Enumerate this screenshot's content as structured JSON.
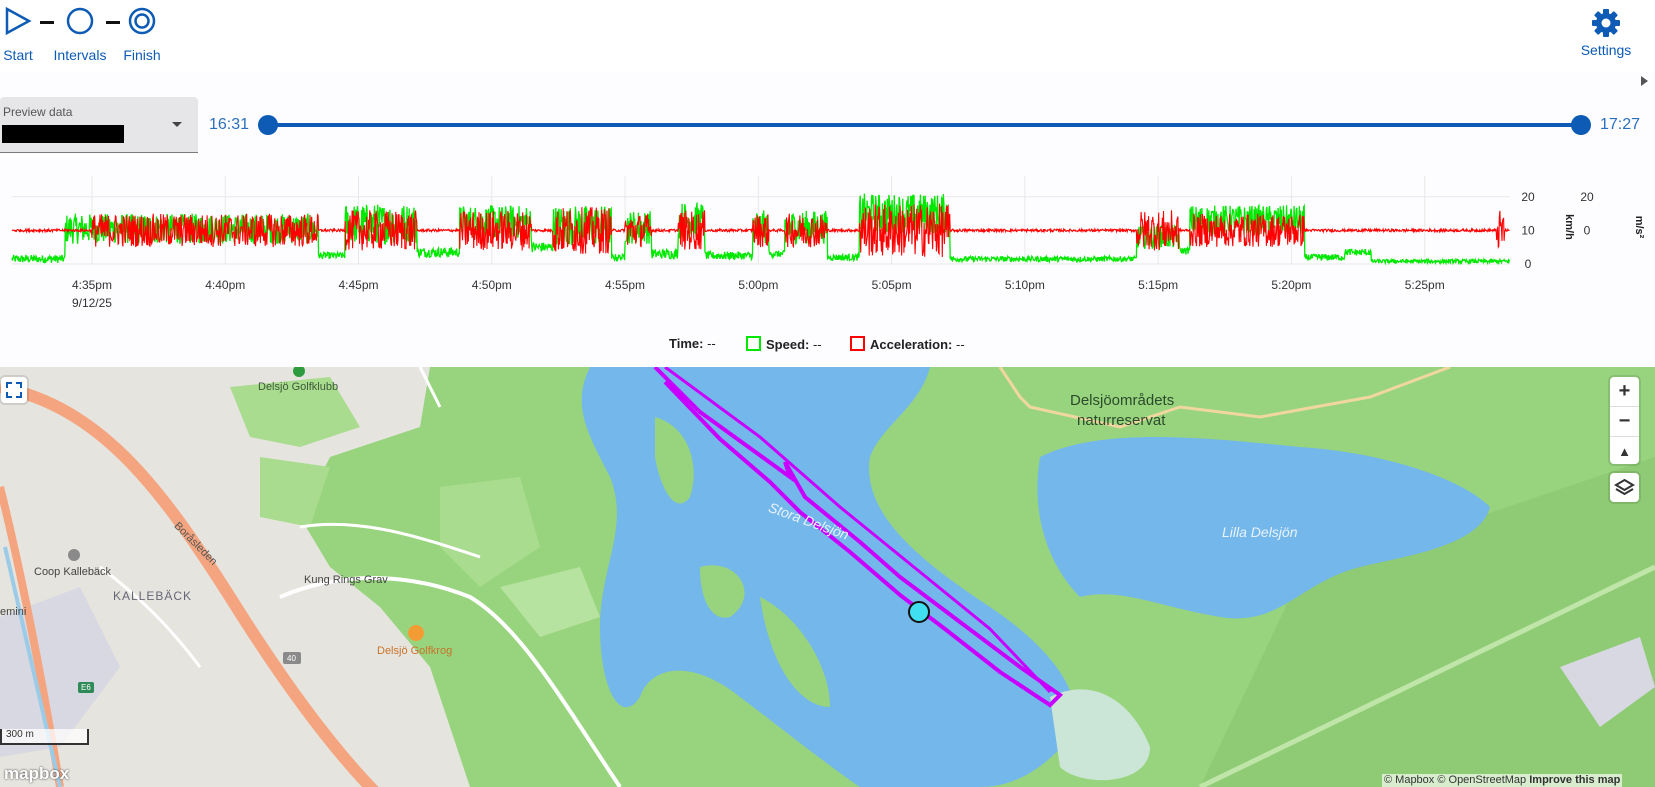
{
  "steps": [
    {
      "label": "Start",
      "icon": "play-outline-icon"
    },
    {
      "label": "Intervals",
      "icon": "circle-outline-icon"
    },
    {
      "label": "Finish",
      "icon": "target-icon"
    }
  ],
  "settings_label": "Settings",
  "preview": {
    "label": "Preview data",
    "value": ""
  },
  "range": {
    "start_label": "16:31",
    "end_label": "17:27",
    "start_fraction": 0.0,
    "end_fraction": 1.0
  },
  "legend": {
    "time_label": "Time:",
    "time_value": "--",
    "speed_label": "Speed:",
    "speed_value": "--",
    "accel_label": "Acceleration:",
    "accel_value": "--"
  },
  "colors": {
    "accent": "#0d5bb5",
    "speed": "#00e800",
    "acceleration": "#ff0000",
    "water": "#74b7ea",
    "land": "#98d47e",
    "track": "#c800ff",
    "marker": "#40e0f0"
  },
  "chart_data": {
    "type": "line",
    "x_ticks": [
      "4:35pm",
      "4:40pm",
      "4:45pm",
      "4:50pm",
      "4:55pm",
      "5:00pm",
      "5:05pm",
      "5:10pm",
      "5:15pm",
      "5:20pm",
      "5:25pm"
    ],
    "x_date_label": "9/12/25",
    "x_range_minutes": [
      32.0,
      88.2
    ],
    "y_left": {
      "label": "km/h",
      "ticks": [
        0,
        10,
        20
      ],
      "ylim": [
        0,
        25
      ]
    },
    "y_right": {
      "label": "m/s²",
      "ticks": [
        0,
        20
      ],
      "ylim": [
        -20,
        30
      ]
    },
    "series": [
      {
        "name": "Speed",
        "color": "#00e800",
        "segments": [
          {
            "start": 32.0,
            "end": 34.0,
            "level": 1.5,
            "noise": 1.2
          },
          {
            "start": 34.0,
            "end": 43.5,
            "level": 10.5,
            "noise": 4.5
          },
          {
            "start": 43.5,
            "end": 44.5,
            "level": 2.5,
            "noise": 1.0
          },
          {
            "start": 44.5,
            "end": 47.2,
            "level": 12.0,
            "noise": 6.0
          },
          {
            "start": 47.2,
            "end": 48.8,
            "level": 3.5,
            "noise": 1.5
          },
          {
            "start": 48.8,
            "end": 51.5,
            "level": 12.5,
            "noise": 5.0
          },
          {
            "start": 51.5,
            "end": 52.3,
            "level": 5.0,
            "noise": 1.5
          },
          {
            "start": 52.3,
            "end": 54.5,
            "level": 11.5,
            "noise": 6.0
          },
          {
            "start": 54.5,
            "end": 55.0,
            "level": 2.0,
            "noise": 1.0
          },
          {
            "start": 55.0,
            "end": 56.0,
            "level": 11.0,
            "noise": 5.0
          },
          {
            "start": 56.0,
            "end": 57.0,
            "level": 3.0,
            "noise": 1.5
          },
          {
            "start": 57.0,
            "end": 58.0,
            "level": 13.0,
            "noise": 5.5
          },
          {
            "start": 58.0,
            "end": 59.8,
            "level": 2.5,
            "noise": 1.2
          },
          {
            "start": 59.8,
            "end": 60.4,
            "level": 11.0,
            "noise": 5.0
          },
          {
            "start": 60.4,
            "end": 61.0,
            "level": 3.0,
            "noise": 1.0
          },
          {
            "start": 61.0,
            "end": 62.6,
            "level": 11.0,
            "noise": 5.0
          },
          {
            "start": 62.6,
            "end": 63.8,
            "level": 2.0,
            "noise": 1.0
          },
          {
            "start": 63.8,
            "end": 67.2,
            "level": 15.0,
            "noise": 6.0
          },
          {
            "start": 67.2,
            "end": 74.2,
            "level": 1.5,
            "noise": 0.8
          },
          {
            "start": 74.2,
            "end": 75.8,
            "level": 8.0,
            "noise": 3.5
          },
          {
            "start": 75.8,
            "end": 76.2,
            "level": 4.0,
            "noise": 1.0
          },
          {
            "start": 76.2,
            "end": 80.5,
            "level": 13.0,
            "noise": 4.5
          },
          {
            "start": 80.5,
            "end": 82.0,
            "level": 2.0,
            "noise": 1.0
          },
          {
            "start": 82.0,
            "end": 83.0,
            "level": 3.5,
            "noise": 1.0
          },
          {
            "start": 83.0,
            "end": 88.2,
            "level": 0.8,
            "noise": 0.6
          }
        ]
      },
      {
        "name": "Acceleration",
        "color": "#ff0000",
        "baseline": 0,
        "active_segments": [
          {
            "start": 35.0,
            "end": 43.5,
            "noise": 10
          },
          {
            "start": 44.5,
            "end": 47.2,
            "noise": 12
          },
          {
            "start": 48.8,
            "end": 51.5,
            "noise": 12
          },
          {
            "start": 52.3,
            "end": 54.5,
            "noise": 14
          },
          {
            "start": 55.0,
            "end": 56.0,
            "noise": 10
          },
          {
            "start": 57.0,
            "end": 58.0,
            "noise": 12
          },
          {
            "start": 59.8,
            "end": 60.4,
            "noise": 10
          },
          {
            "start": 61.0,
            "end": 62.6,
            "noise": 10
          },
          {
            "start": 63.8,
            "end": 67.2,
            "noise": 16
          },
          {
            "start": 74.2,
            "end": 75.8,
            "noise": 12
          },
          {
            "start": 76.2,
            "end": 80.5,
            "noise": 10
          },
          {
            "start": 87.7,
            "end": 88.0,
            "noise": 12
          }
        ]
      }
    ]
  },
  "map": {
    "labels": [
      {
        "text": "Delsjö Golfklubb",
        "kind": "poi"
      },
      {
        "text": "Delsjöområdets",
        "kind": "area"
      },
      {
        "text": "naturreservat",
        "kind": "area"
      },
      {
        "text": "Lilla Delsjön",
        "kind": "water"
      },
      {
        "text": "Stora Delsjön",
        "kind": "water"
      },
      {
        "text": "Coop Kallebäck",
        "kind": "poi"
      },
      {
        "text": "KALLEBÄCK",
        "kind": "district"
      },
      {
        "text": "Kung Rings Grav",
        "kind": "poi"
      },
      {
        "text": "Delsjö Golfkrog",
        "kind": "poi-food"
      },
      {
        "text": "Boråsleden",
        "kind": "road"
      },
      {
        "text": "emini",
        "kind": "poi"
      },
      {
        "text": "40",
        "kind": "shield"
      },
      {
        "text": "E6",
        "kind": "shield"
      }
    ],
    "scale_label": "300 m",
    "attribution": "© Mapbox © OpenStreetMap",
    "improve_label": "Improve this map",
    "logo_text": "mapbox"
  }
}
